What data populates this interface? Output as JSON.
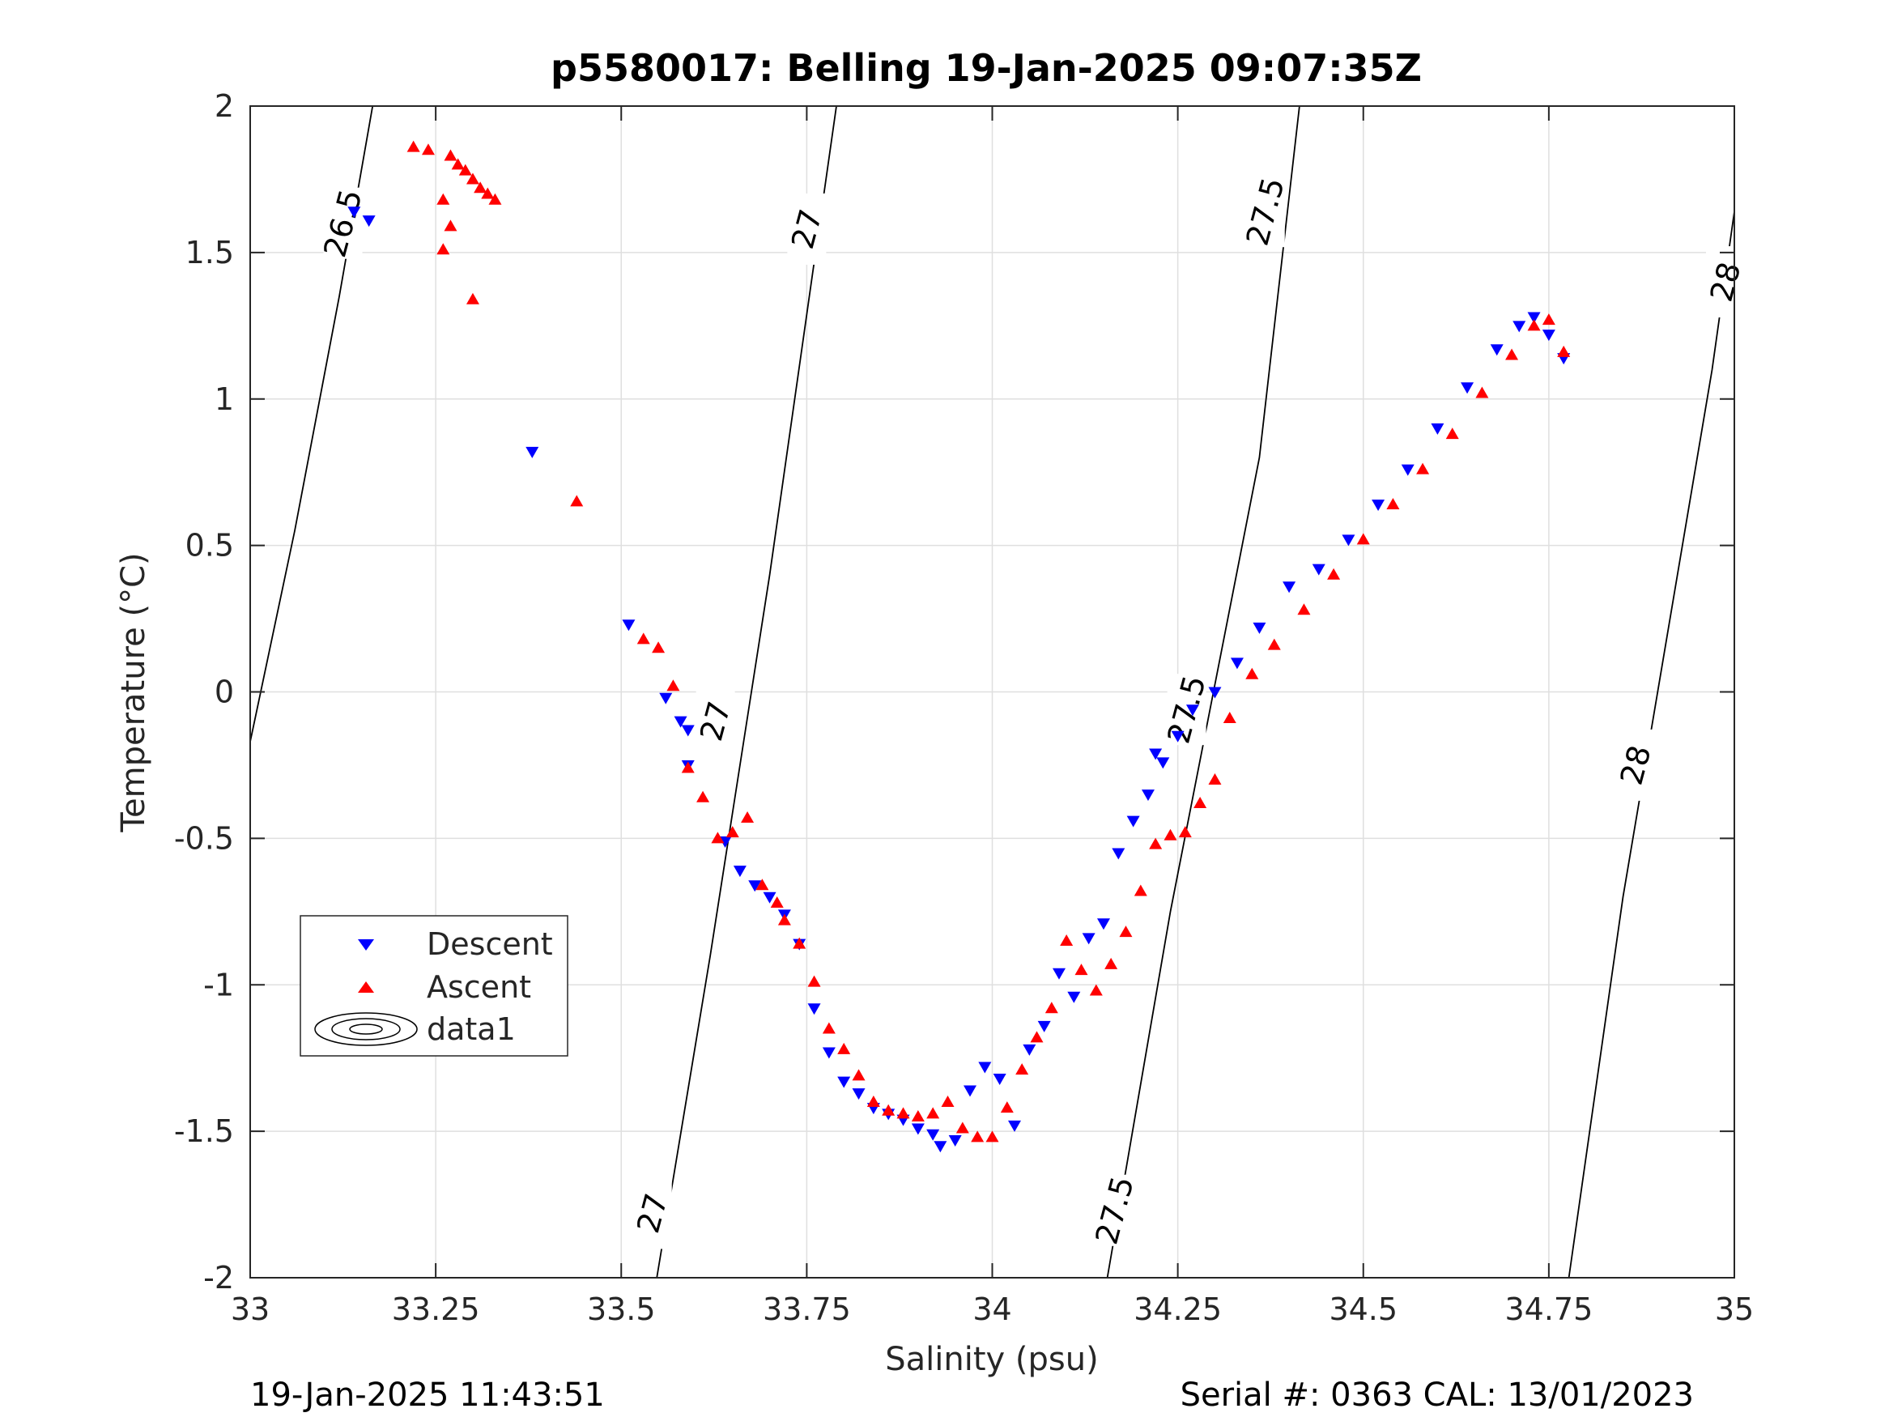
{
  "chart_data": {
    "type": "scatter",
    "title": "p5580017: Belling 19-Jan-2025 09:07:35Z",
    "xlabel": "Salinity (psu)",
    "ylabel": "Temperature (°C)",
    "xlim": [
      33,
      35
    ],
    "ylim": [
      -2,
      2
    ],
    "x_ticks": [
      33,
      33.25,
      33.5,
      33.75,
      34,
      34.25,
      34.5,
      34.75,
      35
    ],
    "x_tick_labels": [
      "33",
      "33.25",
      "33.5",
      "33.75",
      "34",
      "34.25",
      "34.5",
      "34.75",
      "35"
    ],
    "y_ticks": [
      2,
      1.5,
      1,
      0.5,
      0,
      -0.5,
      -1,
      -1.5,
      -2
    ],
    "y_tick_labels": [
      "2",
      "1.5",
      "1",
      "0.5",
      "0",
      "-0.5",
      "-1",
      "-1.5",
      "-2"
    ],
    "grid": true,
    "legend_position": "lower-left",
    "series": [
      {
        "name": "Descent",
        "marker": "triangle-down",
        "color": "#0000ff",
        "x": [
          33.14,
          33.16,
          33.38,
          33.51,
          33.56,
          33.58,
          33.59,
          33.59,
          33.64,
          33.66,
          33.68,
          33.7,
          33.72,
          33.74,
          33.76,
          33.78,
          33.8,
          33.82,
          33.84,
          33.86,
          33.88,
          33.9,
          33.92,
          33.93,
          33.95,
          33.97,
          33.99,
          34.01,
          34.03,
          34.05,
          34.07,
          34.09,
          34.11,
          34.13,
          34.15,
          34.17,
          34.19,
          34.21,
          34.22,
          34.23,
          34.25,
          34.27,
          34.3,
          34.33,
          34.36,
          34.4,
          34.44,
          34.48,
          34.52,
          34.56,
          34.6,
          34.64,
          34.68,
          34.71,
          34.73,
          34.75,
          34.77
        ],
        "y": [
          1.64,
          1.61,
          0.82,
          0.23,
          -0.02,
          -0.1,
          -0.13,
          -0.25,
          -0.51,
          -0.61,
          -0.66,
          -0.7,
          -0.76,
          -0.86,
          -1.08,
          -1.23,
          -1.33,
          -1.37,
          -1.42,
          -1.44,
          -1.46,
          -1.49,
          -1.51,
          -1.55,
          -1.53,
          -1.36,
          -1.28,
          -1.32,
          -1.48,
          -1.22,
          -1.14,
          -0.96,
          -1.04,
          -0.84,
          -0.79,
          -0.55,
          -0.44,
          -0.35,
          -0.21,
          -0.24,
          -0.15,
          -0.06,
          0.0,
          0.1,
          0.22,
          0.36,
          0.42,
          0.52,
          0.64,
          0.76,
          0.9,
          1.04,
          1.17,
          1.25,
          1.28,
          1.22,
          1.14
        ]
      },
      {
        "name": "Ascent",
        "marker": "triangle-up",
        "color": "#ff0000",
        "x": [
          33.22,
          33.24,
          33.27,
          33.28,
          33.29,
          33.3,
          33.31,
          33.32,
          33.33,
          33.26,
          33.27,
          33.26,
          33.3,
          33.44,
          33.53,
          33.55,
          33.57,
          33.59,
          33.61,
          33.63,
          33.65,
          33.67,
          33.69,
          33.71,
          33.72,
          33.74,
          33.76,
          33.78,
          33.8,
          33.82,
          33.84,
          33.86,
          33.88,
          33.9,
          33.92,
          33.94,
          33.96,
          33.98,
          34.0,
          34.02,
          34.04,
          34.06,
          34.08,
          34.1,
          34.12,
          34.14,
          34.16,
          34.18,
          34.2,
          34.22,
          34.24,
          34.26,
          34.28,
          34.3,
          34.32,
          34.35,
          34.38,
          34.42,
          34.46,
          34.5,
          34.54,
          34.58,
          34.62,
          34.66,
          34.7,
          34.73,
          34.75,
          34.77
        ],
        "y": [
          1.86,
          1.85,
          1.83,
          1.8,
          1.78,
          1.75,
          1.72,
          1.7,
          1.68,
          1.68,
          1.59,
          1.51,
          1.34,
          0.65,
          0.18,
          0.15,
          0.02,
          -0.26,
          -0.36,
          -0.5,
          -0.48,
          -0.43,
          -0.66,
          -0.72,
          -0.78,
          -0.86,
          -0.99,
          -1.15,
          -1.22,
          -1.31,
          -1.4,
          -1.43,
          -1.44,
          -1.45,
          -1.44,
          -1.4,
          -1.49,
          -1.52,
          -1.52,
          -1.42,
          -1.29,
          -1.18,
          -1.08,
          -0.85,
          -0.95,
          -1.02,
          -0.93,
          -0.82,
          -0.68,
          -0.52,
          -0.49,
          -0.48,
          -0.38,
          -0.3,
          -0.09,
          0.06,
          0.16,
          0.28,
          0.4,
          0.52,
          0.64,
          0.76,
          0.88,
          1.02,
          1.15,
          1.25,
          1.27,
          1.16
        ]
      }
    ],
    "contour_series_name": "data1",
    "contours": [
      {
        "level": 26.5,
        "labels": [
          "26.5"
        ]
      },
      {
        "level": 27,
        "labels": [
          "27",
          "27",
          "27"
        ]
      },
      {
        "level": 27.5,
        "labels": [
          "27.5",
          "27.5",
          "27.5"
        ]
      },
      {
        "level": 28,
        "labels": [
          "28",
          "28"
        ]
      }
    ]
  },
  "footer": {
    "left": "19-Jan-2025 11:43:51",
    "right": "Serial #: 0363  CAL: 13/01/2023"
  }
}
